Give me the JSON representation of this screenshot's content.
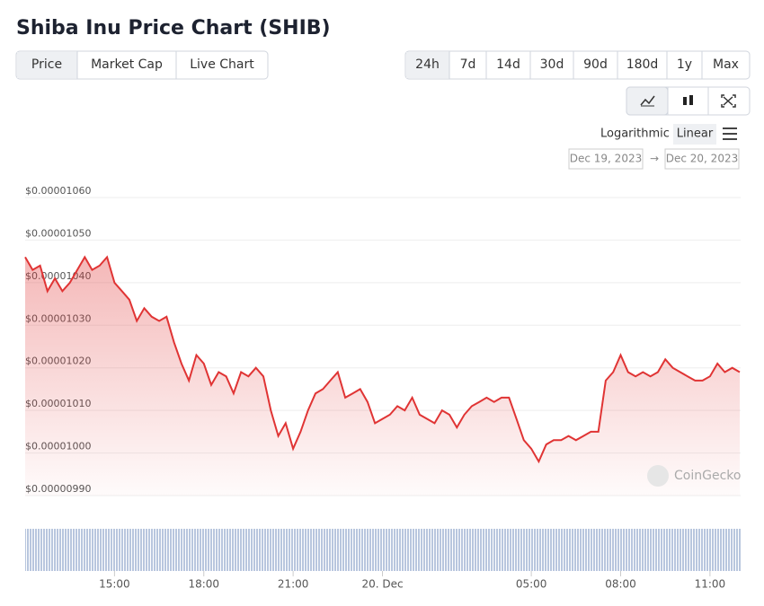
{
  "header": {
    "title": "Shiba Inu Price Chart (SHIB)"
  },
  "tabs": [
    "Price",
    "Market Cap",
    "Live Chart"
  ],
  "ranges": [
    "24h",
    "7d",
    "14d",
    "30d",
    "90d",
    "180d",
    "1y",
    "Max"
  ],
  "scale_options": [
    "Logarithmic",
    "Linear"
  ],
  "date_range": {
    "from": "Dec 19, 2023",
    "separator": "→",
    "to": "Dec 20, 2023"
  },
  "watermark": "CoinGecko",
  "chart_data": {
    "type": "line",
    "color": "#e03434",
    "area": true,
    "grid": true,
    "categories": [
      null,
      null,
      null,
      null,
      null,
      null,
      null,
      null,
      null,
      null,
      null,
      null,
      "15:00",
      null,
      null,
      null,
      null,
      null,
      null,
      null,
      null,
      null,
      null,
      null,
      "18:00",
      null,
      null,
      null,
      null,
      null,
      null,
      null,
      null,
      null,
      null,
      null,
      "21:00",
      null,
      null,
      null,
      null,
      null,
      null,
      null,
      null,
      null,
      null,
      null,
      "20. Dec",
      null,
      null,
      null,
      null,
      null,
      null,
      null,
      null,
      null,
      null,
      null,
      null,
      null,
      null,
      null,
      null,
      null,
      null,
      null,
      "05:00",
      null,
      null,
      null,
      null,
      null,
      null,
      null,
      null,
      null,
      null,
      null,
      "08:00",
      null,
      null,
      null,
      null,
      null,
      null,
      null,
      null,
      null,
      null,
      null,
      "11:00",
      null,
      null,
      null,
      null
    ],
    "values": [
      1.046e-05,
      1.043e-05,
      1.044e-05,
      1.038e-05,
      1.041e-05,
      1.038e-05,
      1.04e-05,
      1.043e-05,
      1.046e-05,
      1.043e-05,
      1.044e-05,
      1.046e-05,
      1.04e-05,
      1.038e-05,
      1.036e-05,
      1.031e-05,
      1.034e-05,
      1.032e-05,
      1.031e-05,
      1.032e-05,
      1.026e-05,
      1.021e-05,
      1.017e-05,
      1.023e-05,
      1.021e-05,
      1.016e-05,
      1.019e-05,
      1.018e-05,
      1.014e-05,
      1.019e-05,
      1.018e-05,
      1.02e-05,
      1.018e-05,
      1.01e-05,
      1.004e-05,
      1.007e-05,
      1.001e-05,
      1.005e-05,
      1.01e-05,
      1.014e-05,
      1.015e-05,
      1.017e-05,
      1.019e-05,
      1.013e-05,
      1.014e-05,
      1.015e-05,
      1.012e-05,
      1.007e-05,
      1.008e-05,
      1.009e-05,
      1.011e-05,
      1.01e-05,
      1.013e-05,
      1.009e-05,
      1.008e-05,
      1.007e-05,
      1.01e-05,
      1.009e-05,
      1.006e-05,
      1.009e-05,
      1.011e-05,
      1.012e-05,
      1.013e-05,
      1.012e-05,
      1.013e-05,
      1.013e-05,
      1.008e-05,
      1.003e-05,
      1.001e-05,
      9.98e-06,
      1.002e-05,
      1.003e-05,
      1.003e-05,
      1.004e-05,
      1.003e-05,
      1.004e-05,
      1.005e-05,
      1.005e-05,
      1.017e-05,
      1.019e-05,
      1.023e-05,
      1.019e-05,
      1.018e-05,
      1.019e-05,
      1.018e-05,
      1.019e-05,
      1.022e-05,
      1.02e-05,
      1.019e-05,
      1.018e-05,
      1.017e-05,
      1.017e-05,
      1.018e-05,
      1.021e-05,
      1.019e-05,
      1.02e-05,
      1.019e-05
    ],
    "ylim": [
      9.9e-06,
      1.06e-05
    ],
    "yticks": [
      {
        "value": 9.9e-06,
        "label": "$0.00000990"
      },
      {
        "value": 1e-05,
        "label": "$0.00001000"
      },
      {
        "value": 1.01e-05,
        "label": "$0.00001010"
      },
      {
        "value": 1.02e-05,
        "label": "$0.00001020"
      },
      {
        "value": 1.03e-05,
        "label": "$0.00001030"
      },
      {
        "value": 1.04e-05,
        "label": "$0.00001040"
      },
      {
        "value": 1.05e-05,
        "label": "$0.00001050"
      },
      {
        "value": 1.06e-05,
        "label": "$0.00001060"
      }
    ]
  }
}
